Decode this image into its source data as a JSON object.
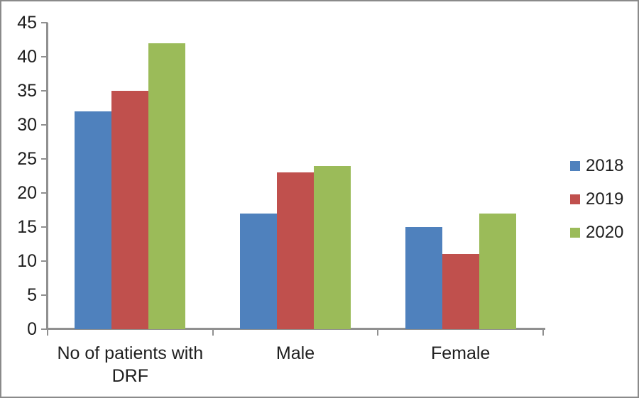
{
  "frame": {
    "background_color": "#ffffff",
    "border_color": "#8a8a8a"
  },
  "chart_data": {
    "type": "bar",
    "title": "",
    "xlabel": "",
    "ylabel": "",
    "categories": [
      "No of patients with DRF",
      "Male",
      "Female"
    ],
    "series": [
      {
        "name": "2018",
        "color": "#4f81bd",
        "values": [
          32,
          17,
          15
        ]
      },
      {
        "name": "2019",
        "color": "#c0504d",
        "values": [
          35,
          23,
          11
        ]
      },
      {
        "name": "2020",
        "color": "#9bbb59",
        "values": [
          42,
          24,
          17
        ]
      }
    ],
    "ylim": [
      0,
      45
    ],
    "ytick_step": 5,
    "yticks": [
      0,
      5,
      10,
      15,
      20,
      25,
      30,
      35,
      40,
      45
    ],
    "grid": false,
    "legend_position": "right",
    "axis_color": "#909090",
    "text_color": "#1f1f1f"
  }
}
